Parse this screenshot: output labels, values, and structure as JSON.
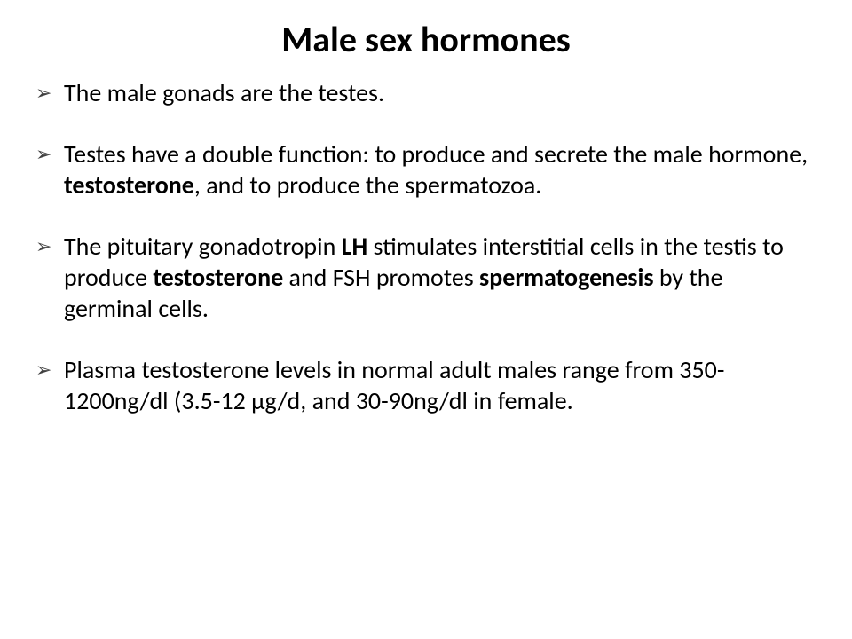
{
  "title": "Male sex hormones",
  "bullets": {
    "b1": "The male gonads are the testes.",
    "b2": {
      "t1": "Testes have a double function: to produce and secrete the male hormone, ",
      "t2": "testosterone",
      "t3": ", and to produce the spermatozoa."
    },
    "b3": {
      "t1": "The pituitary gonadotropin ",
      "t2": "LH",
      "t3": " stimulates interstitial cells in the testis to produce ",
      "t4": "testosterone ",
      "t5": "and FSH promotes ",
      "t6": "spermatogenesis ",
      "t7": "by the germinal cells."
    },
    "b4": "Plasma testosterone levels in normal adult males range from 350-1200ng/dl (3.5-12 μg/d, and 30-90ng/dl in female."
  },
  "styling": {
    "background_color": "#ffffff",
    "text_color": "#000000",
    "bullet_color": "#404040",
    "title_fontsize": 40,
    "body_fontsize": 28,
    "font_family": "Calibri"
  }
}
